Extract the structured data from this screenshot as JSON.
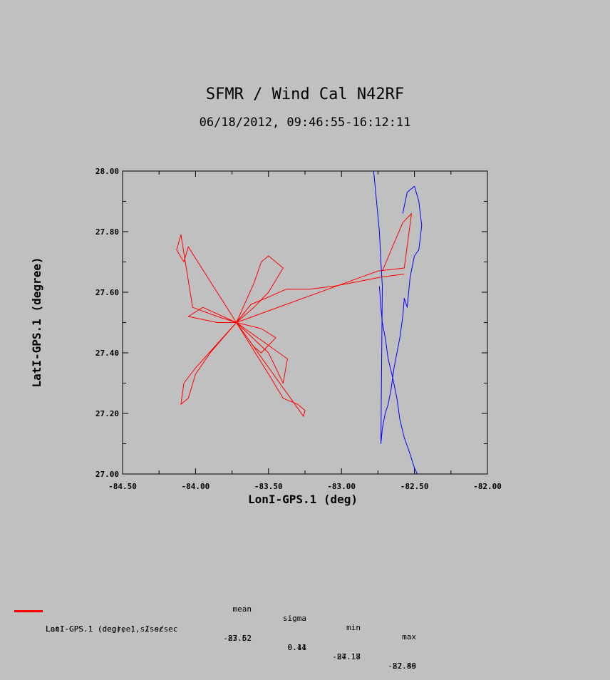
{
  "title": "SFMR / Wind Cal N42RF",
  "subtitle": "06/18/2012, 09:46:55-16:12:11",
  "chart_data": {
    "type": "line",
    "xlabel": "LonI-GPS.1 (deg)",
    "ylabel": "LatI-GPS.1 (degree)",
    "xlim": [
      -84.5,
      -82.0
    ],
    "ylim": [
      27.0,
      28.0
    ],
    "x_tick_labels": [
      "-84.50",
      "-84.00",
      "-83.50",
      "-83.00",
      "-82.50",
      "-82.00"
    ],
    "x_ticks": [
      -84.5,
      -84.0,
      -83.5,
      -83.0,
      -82.5,
      -82.0
    ],
    "y_tick_labels": [
      "27.00",
      "27.20",
      "27.40",
      "27.60",
      "27.80",
      "28.00"
    ],
    "y_ticks": [
      27.0,
      27.2,
      27.4,
      27.6,
      27.8,
      28.0
    ],
    "series": [
      {
        "color": "#ff0000",
        "x": [
          -82.57,
          -82.73,
          -83.05,
          -83.22,
          -83.38,
          -83.52,
          -83.62,
          -83.72,
          -83.85,
          -84.02,
          -84.1,
          -84.13,
          -84.08,
          -84.05,
          -83.72,
          -83.6,
          -83.55,
          -83.5,
          -83.4,
          -83.5,
          -83.6,
          -83.72,
          -83.9,
          -84.0,
          -84.05,
          -84.1,
          -84.08,
          -84.0,
          -83.72,
          -83.5,
          -83.4,
          -83.3,
          -83.25,
          -83.26,
          -83.72,
          -83.55,
          -83.45,
          -83.55,
          -83.6,
          -83.72,
          -83.95,
          -84.05,
          -83.85,
          -83.72,
          -83.5,
          -83.4,
          -83.37,
          -83.72,
          -82.75,
          -82.57,
          -82.52,
          -82.58,
          -82.72
        ],
        "y": [
          27.66,
          27.65,
          27.62,
          27.61,
          27.61,
          27.58,
          27.56,
          27.5,
          27.52,
          27.55,
          27.79,
          27.74,
          27.7,
          27.75,
          27.5,
          27.63,
          27.7,
          27.72,
          27.68,
          27.6,
          27.55,
          27.5,
          27.4,
          27.33,
          27.25,
          27.23,
          27.3,
          27.35,
          27.5,
          27.33,
          27.25,
          27.23,
          27.21,
          27.19,
          27.5,
          27.48,
          27.45,
          27.4,
          27.42,
          27.5,
          27.55,
          27.52,
          27.5,
          27.5,
          27.4,
          27.3,
          27.38,
          27.5,
          27.67,
          27.68,
          27.86,
          27.83,
          27.67
        ]
      },
      {
        "color": "#0000ff",
        "x": [
          -82.58,
          -82.55,
          -82.5,
          -82.47,
          -82.45,
          -82.47,
          -82.5,
          -82.53,
          -82.55,
          -82.57,
          -82.58,
          -82.6,
          -82.62,
          -82.64,
          -82.66,
          -82.68,
          -82.7,
          -82.72,
          -82.73,
          -82.72,
          -82.73,
          -82.74,
          -82.76,
          -82.78
        ],
        "y": [
          27.86,
          27.93,
          27.95,
          27.9,
          27.82,
          27.74,
          27.72,
          27.65,
          27.55,
          27.58,
          27.52,
          27.45,
          27.4,
          27.35,
          27.28,
          27.23,
          27.2,
          27.15,
          27.1,
          27.62,
          27.7,
          27.8,
          27.9,
          28.0
        ]
      },
      {
        "color": "#0000ff",
        "x": [
          -82.74,
          -82.73,
          -82.72,
          -82.7,
          -82.68,
          -82.65,
          -82.62,
          -82.6,
          -82.57,
          -82.54,
          -82.52,
          -82.5,
          -82.48
        ],
        "y": [
          27.62,
          27.55,
          27.5,
          27.45,
          27.38,
          27.32,
          27.25,
          27.18,
          27.12,
          27.08,
          27.05,
          27.02,
          27.0
        ]
      }
    ]
  },
  "stats": {
    "headers": [
      "mean",
      "sigma",
      "min",
      "max"
    ],
    "rows": [
      {
        "label": "LatI-GPS.1 (degree), 1 s/sec",
        "mean": "27.52",
        "sigma": "0.14",
        "min": "27.18",
        "max": "27.86",
        "color": "#ff0000"
      },
      {
        "label": "LonI-GPS.1 (deg), 1 s/sec",
        "mean": "-83.62",
        "sigma": "0.41",
        "min": "-84.17",
        "max": "-82.49"
      }
    ]
  }
}
